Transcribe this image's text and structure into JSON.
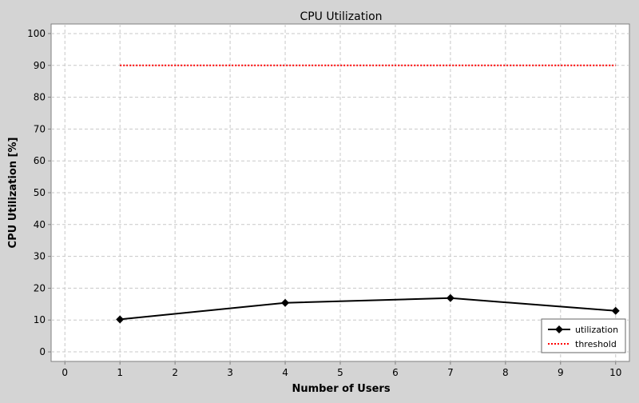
{
  "chart_data": {
    "type": "line",
    "title": "CPU Utilization",
    "xlabel": "Number of Users",
    "ylabel": "CPU Utilization [%]",
    "xlim": [
      -0.25,
      10.25
    ],
    "ylim": [
      -3,
      103
    ],
    "xticks": [
      0,
      1,
      2,
      3,
      4,
      5,
      6,
      7,
      8,
      9,
      10
    ],
    "yticks": [
      0,
      10,
      20,
      30,
      40,
      50,
      60,
      70,
      80,
      90,
      100
    ],
    "grid": true,
    "legend_position": "bottom-right",
    "series": [
      {
        "name": "utilization",
        "color": "#000000",
        "style": "solid",
        "marker": "diamond",
        "x": [
          1,
          4,
          7,
          10
        ],
        "y": [
          10.2,
          15.4,
          16.9,
          12.9
        ]
      },
      {
        "name": "threshold",
        "color": "#ff0000",
        "style": "dotted",
        "marker": "none",
        "x": [
          1,
          4,
          7,
          10
        ],
        "y": [
          90,
          90,
          90,
          90
        ]
      }
    ]
  }
}
